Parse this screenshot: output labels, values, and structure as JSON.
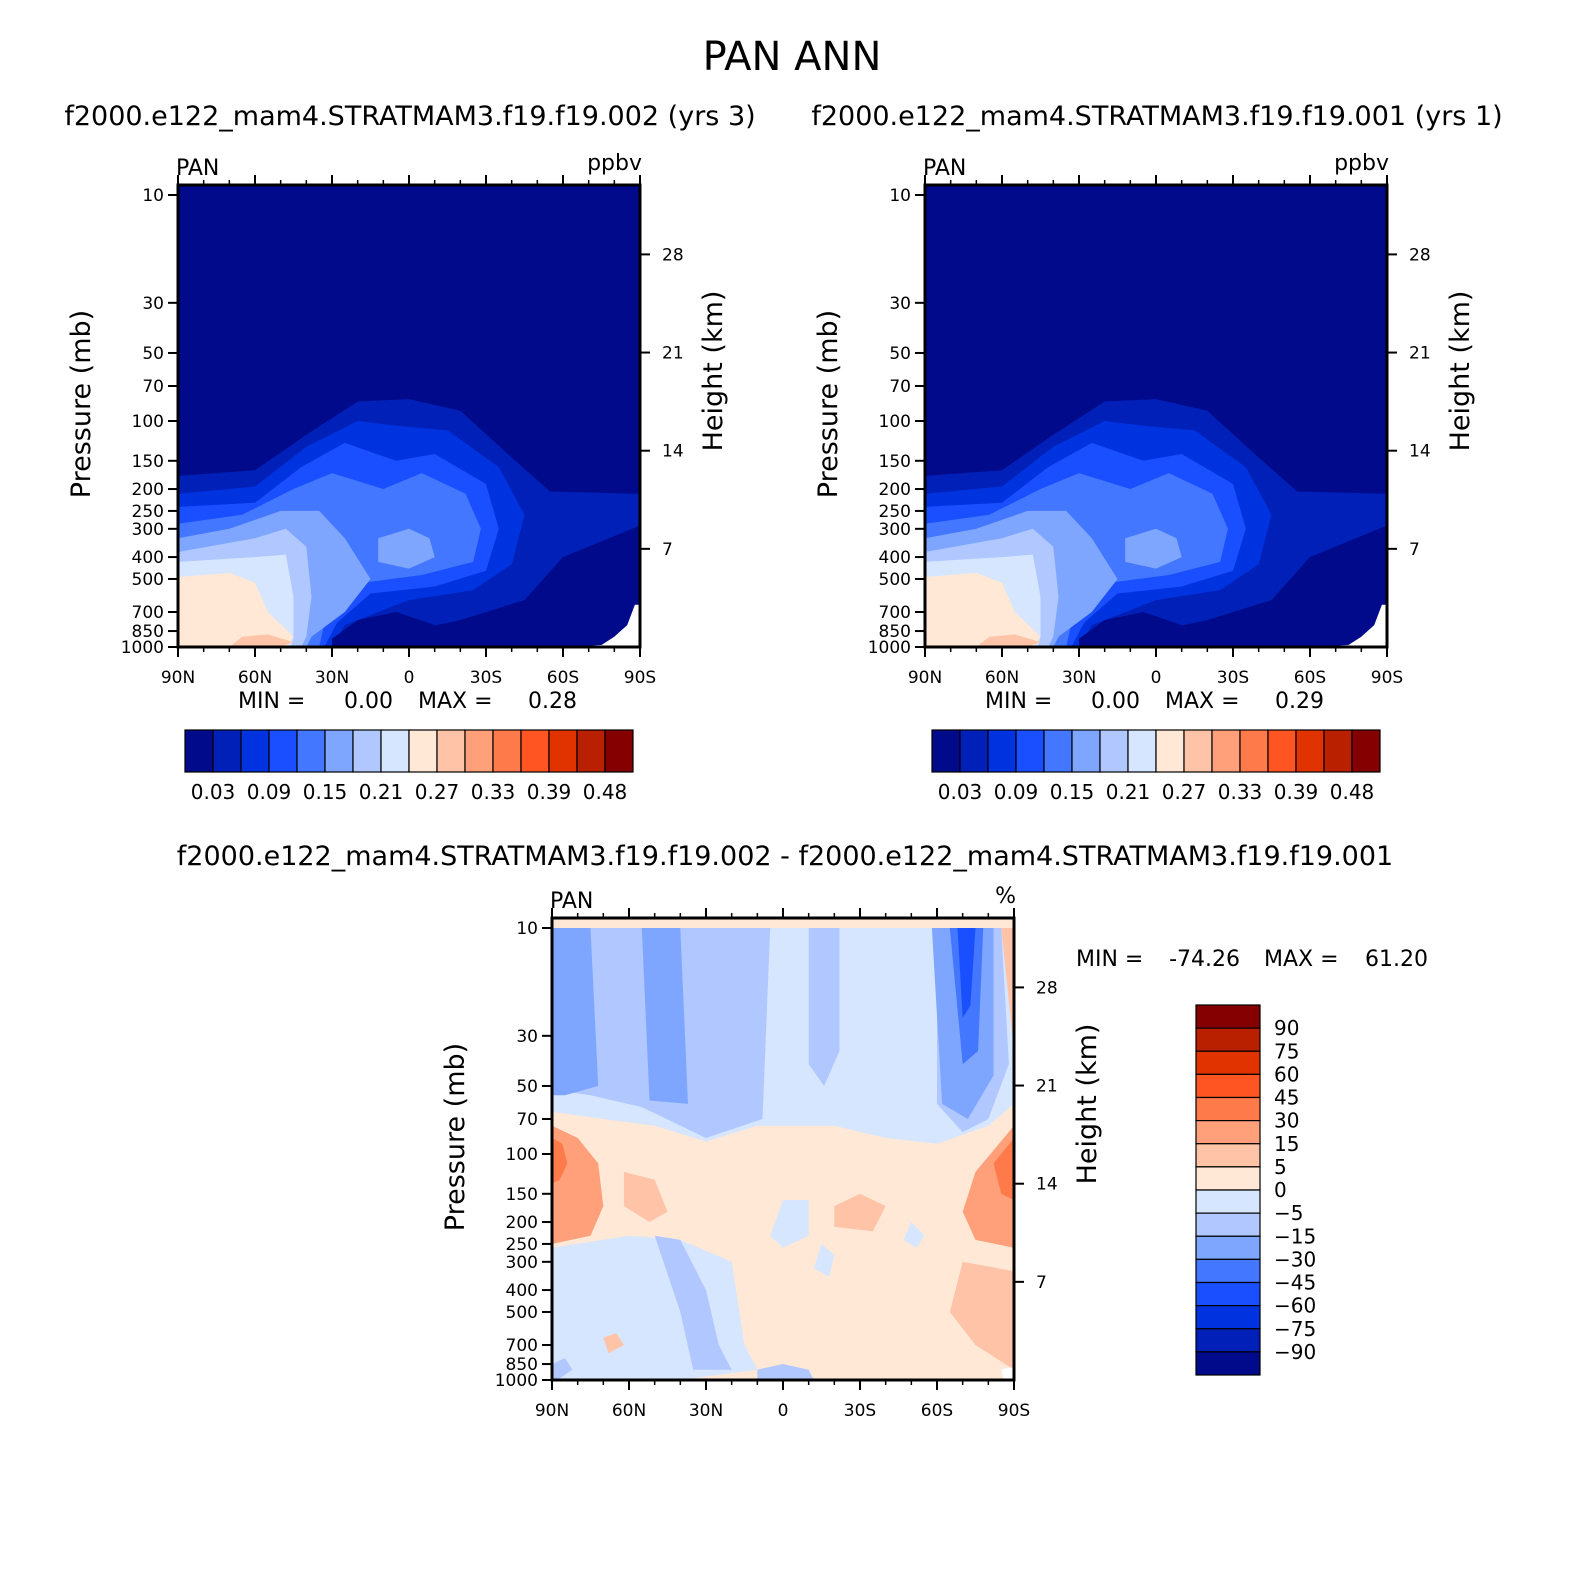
{
  "title": "PAN ANN",
  "chart_data": [
    {
      "type": "heatmap",
      "title": "f2000.e122_mam4.STRATMAM3.f19.f19.002 (yrs 3)",
      "left_label": "PAN",
      "right_label": "ppbv",
      "ylabel": "Pressure (mb)",
      "y2label": "Height (km)",
      "x_ticks": [
        "90N",
        "60N",
        "30N",
        "0",
        "30S",
        "60S",
        "90S"
      ],
      "y_ticks": [
        10,
        30,
        50,
        70,
        100,
        150,
        200,
        250,
        300,
        400,
        500,
        700,
        850,
        1000
      ],
      "y2_ticks": [
        28,
        21,
        14,
        7
      ],
      "ylim": [
        1000,
        10
      ],
      "xlim": [
        90,
        -90
      ],
      "stats": {
        "min_label": "MIN =",
        "min": "0.00",
        "max_label": "MAX =",
        "max": "0.28"
      },
      "min_value": 0.0,
      "max_value": 0.28,
      "colorbar": {
        "labels": [
          "0.03",
          "0.09",
          "0.15",
          "0.21",
          "0.27",
          "0.33",
          "0.39",
          "0.48"
        ],
        "colors": [
          "#000a8a",
          "#0020b8",
          "#0033e0",
          "#1a4fff",
          "#4477ff",
          "#7fa6ff",
          "#b0c8ff",
          "#d6e6ff",
          "#ffe8d6",
          "#ffc4a8",
          "#ffa07a",
          "#ff7a4a",
          "#ff5522",
          "#e03300",
          "#b82000",
          "#850000"
        ]
      }
    },
    {
      "type": "heatmap",
      "title": "f2000.e122_mam4.STRATMAM3.f19.f19.001 (yrs 1)",
      "left_label": "PAN",
      "right_label": "ppbv",
      "ylabel": "Pressure (mb)",
      "y2label": "Height (km)",
      "x_ticks": [
        "90N",
        "60N",
        "30N",
        "0",
        "30S",
        "60S",
        "90S"
      ],
      "y_ticks": [
        10,
        30,
        50,
        70,
        100,
        150,
        200,
        250,
        300,
        400,
        500,
        700,
        850,
        1000
      ],
      "y2_ticks": [
        28,
        21,
        14,
        7
      ],
      "ylim": [
        1000,
        10
      ],
      "xlim": [
        90,
        -90
      ],
      "stats": {
        "min_label": "MIN =",
        "min": "0.00",
        "max_label": "MAX =",
        "max": "0.29"
      },
      "min_value": 0.0,
      "max_value": 0.29,
      "colorbar": {
        "labels": [
          "0.03",
          "0.09",
          "0.15",
          "0.21",
          "0.27",
          "0.33",
          "0.39",
          "0.48"
        ],
        "colors": [
          "#000a8a",
          "#0020b8",
          "#0033e0",
          "#1a4fff",
          "#4477ff",
          "#7fa6ff",
          "#b0c8ff",
          "#d6e6ff",
          "#ffe8d6",
          "#ffc4a8",
          "#ffa07a",
          "#ff7a4a",
          "#ff5522",
          "#e03300",
          "#b82000",
          "#850000"
        ]
      }
    },
    {
      "type": "heatmap",
      "title": "f2000.e122_mam4.STRATMAM3.f19.f19.002 - f2000.e122_mam4.STRATMAM3.f19.f19.001",
      "left_label": "PAN",
      "right_label": "%",
      "ylabel": "Pressure (mb)",
      "y2label": "Height (km)",
      "x_ticks": [
        "90N",
        "60N",
        "30N",
        "0",
        "30S",
        "60S",
        "90S"
      ],
      "y_ticks": [
        10,
        30,
        50,
        70,
        100,
        150,
        200,
        250,
        300,
        400,
        500,
        700,
        850,
        1000
      ],
      "y2_ticks": [
        28,
        21,
        14,
        7
      ],
      "ylim": [
        1000,
        10
      ],
      "xlim": [
        90,
        -90
      ],
      "stats": {
        "min_label": "MIN =",
        "min": "-74.26",
        "max_label": "MAX =",
        "max": "61.20"
      },
      "min_value": -74.26,
      "max_value": 61.2,
      "colorbar": {
        "labels": [
          "90",
          "75",
          "60",
          "45",
          "30",
          "15",
          "5",
          "0",
          "-5",
          "-15",
          "-30",
          "-45",
          "-60",
          "-75",
          "-90"
        ],
        "colors": [
          "#850000",
          "#b82000",
          "#e03300",
          "#ff5522",
          "#ff7a4a",
          "#ffa07a",
          "#ffc4a8",
          "#ffe8d6",
          "#d6e6ff",
          "#b0c8ff",
          "#7fa6ff",
          "#4477ff",
          "#1a4fff",
          "#0033e0",
          "#0020b8",
          "#000a8a"
        ]
      }
    }
  ]
}
